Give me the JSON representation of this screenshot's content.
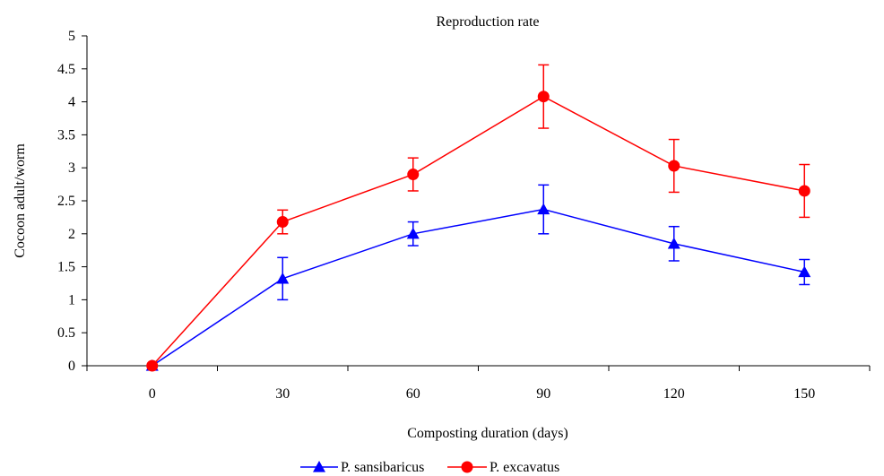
{
  "chart_data": {
    "type": "line",
    "title": "Reproduction rate",
    "xlabel": "Composting duration (days)",
    "ylabel": "Cocoon adult/worm",
    "categories": [
      "0",
      "30",
      "60",
      "90",
      "120",
      "150"
    ],
    "x": [
      0,
      30,
      60,
      90,
      120,
      150
    ],
    "ylim": [
      0,
      5
    ],
    "yticks": [
      0,
      0.5,
      1,
      1.5,
      2,
      2.5,
      3,
      3.5,
      4,
      4.5,
      5
    ],
    "ytick_labels": [
      "0",
      "0.5",
      "1",
      "1.5",
      "2",
      "2.5",
      "3",
      "3.5",
      "4",
      "4.5",
      "5"
    ],
    "grid": false,
    "legend_position": "bottom",
    "series": [
      {
        "name": "P. sansibaricus",
        "color": "#0000ff",
        "marker": "triangle",
        "values": [
          0,
          1.32,
          2.0,
          2.37,
          1.85,
          1.42
        ],
        "error": [
          0,
          0.32,
          0.18,
          0.37,
          0.26,
          0.19
        ]
      },
      {
        "name": "P. excavatus",
        "color": "#ff0000",
        "marker": "circle",
        "values": [
          0,
          2.18,
          2.9,
          4.08,
          3.03,
          2.65
        ],
        "error": [
          0,
          0.18,
          0.25,
          0.48,
          0.4,
          0.4
        ]
      }
    ]
  }
}
